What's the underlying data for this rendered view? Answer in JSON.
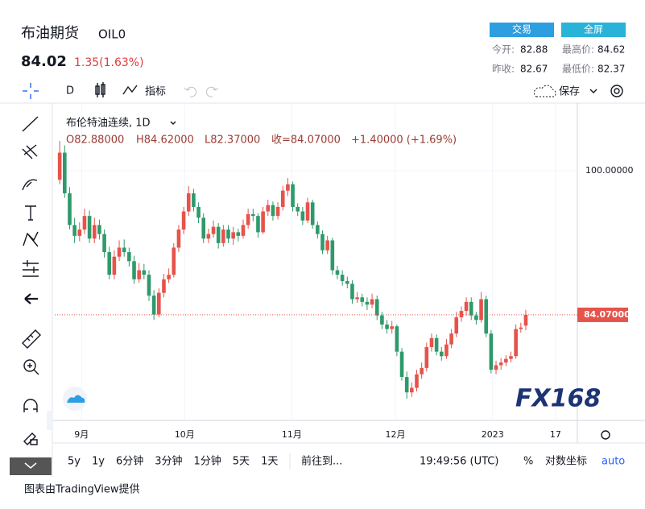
{
  "header": {
    "title": "布油期货",
    "symbol": "OIL0",
    "price": 84.02,
    "change": "1.35(1.63%)",
    "buttons": [
      "交易",
      "全屏"
    ],
    "stats": [
      {
        "label": "今开:",
        "value": 82.88
      },
      {
        "label": "最高价:",
        "value": 84.62
      },
      {
        "label": "昨收:",
        "value": 82.67
      },
      {
        "label": "最低价:",
        "value": 82.37
      }
    ]
  },
  "toolbar": {
    "interval": "D",
    "indicators": "指标",
    "save": "保存"
  },
  "legend": {
    "name": "布伦特油连续, 1D",
    "open": "O82.88000",
    "high": "H84.62000",
    "low": "L82.37000",
    "close": "收=84.07000",
    "change": "+1.40000 (+1.69%)"
  },
  "bottom_bar": {
    "ranges": [
      "5y",
      "1y",
      "6分钟",
      "3分钟",
      "1分钟",
      "5天",
      "1天"
    ],
    "goto": "前往到...",
    "time": "19:49:56 (UTC)",
    "percent": "%",
    "log": "对数坐标",
    "auto": "auto"
  },
  "footer": "图表由TradingView提供",
  "watermark": "FX168",
  "chart_data": {
    "type": "candlestick",
    "up_color": "#e5534b",
    "down_color": "#2e9a6b",
    "grid": true,
    "ylim": [
      72.4,
      107.3
    ],
    "yticks": [
      {
        "value": 100,
        "label": "100.00000"
      }
    ],
    "xlim": [
      -1,
      104.4
    ],
    "xticks": [
      {
        "value": 4.4,
        "label": "9月"
      },
      {
        "value": 25.2,
        "label": "10月"
      },
      {
        "value": 46.8,
        "label": "11月"
      },
      {
        "value": 67.7,
        "label": "12月"
      },
      {
        "value": 87.3,
        "label": "2023"
      },
      {
        "value": 100,
        "label": "17"
      }
    ],
    "last_price": {
      "value": 84.07,
      "label": "84.07000"
    },
    "open": [
      99.0,
      102.0,
      97.5,
      94.0,
      92.8,
      93.5,
      95.0,
      92.5,
      94.0,
      93.0,
      91.0,
      88.5,
      90.5,
      91.5,
      91.0,
      90.0,
      88.0,
      89.0,
      88.5,
      86.2,
      84.1,
      86.5,
      88.0,
      88.5,
      91.5,
      93.5,
      95.5,
      97.5,
      96.0,
      94.8,
      92.5,
      93.0,
      93.8,
      92.0,
      93.5,
      92.5,
      93.2,
      92.8,
      94.0,
      95.2,
      95.0,
      93.2,
      95.5,
      96.2,
      95.0,
      96.0,
      97.8,
      98.5,
      96.0,
      95.5,
      94.5,
      96.5,
      94.0,
      93.0,
      91.2,
      92.3,
      89.0,
      88.5,
      87.8,
      87.5,
      85.8,
      86.0,
      85.5,
      85.2,
      85.8,
      84.0,
      83.0,
      82.5,
      82.8,
      80.0,
      77.2,
      75.5,
      76.0,
      77.5,
      78.2,
      80.5,
      81.5,
      80.0,
      79.5,
      80.8,
      82.0,
      83.8,
      84.5,
      85.5,
      84.0,
      83.5,
      85.8,
      82.0,
      78.0,
      78.5,
      78.8,
      79.2,
      79.5,
      82.5,
      82.88
    ],
    "high": [
      103.3,
      102.8,
      98.2,
      94.8,
      94.3,
      95.8,
      95.6,
      94.8,
      94.6,
      93.5,
      91.6,
      91.2,
      92.3,
      92.4,
      91.5,
      90.6,
      89.8,
      89.7,
      89.0,
      86.8,
      87.0,
      88.6,
      89.2,
      92.0,
      94.0,
      96.0,
      98.3,
      98.0,
      96.5,
      95.3,
      93.6,
      94.5,
      94.2,
      94.0,
      94.0,
      93.8,
      93.6,
      94.6,
      95.8,
      95.8,
      95.3,
      96.0,
      96.8,
      96.6,
      96.5,
      98.3,
      99.2,
      98.8,
      96.4,
      96.0,
      97.0,
      96.8,
      94.4,
      93.4,
      92.8,
      92.6,
      89.5,
      89.0,
      88.3,
      87.9,
      86.6,
      86.4,
      86.0,
      86.4,
      86.2,
      84.4,
      83.5,
      83.4,
      83.0,
      80.4,
      77.8,
      76.6,
      78.0,
      78.8,
      81.0,
      82.0,
      81.9,
      80.5,
      81.4,
      82.5,
      84.4,
      85.0,
      86.0,
      86.0,
      84.4,
      86.6,
      86.2,
      82.4,
      79.0,
      79.3,
      79.6,
      80.0,
      83.0,
      83.2,
      84.62
    ],
    "low": [
      98.5,
      97.0,
      93.5,
      92.0,
      92.2,
      93.0,
      92.0,
      92.0,
      92.4,
      90.4,
      88.0,
      88.0,
      90.0,
      90.5,
      89.4,
      87.5,
      87.6,
      88.0,
      85.6,
      83.5,
      83.8,
      86.0,
      87.6,
      88.2,
      91.0,
      93.0,
      95.0,
      95.5,
      94.2,
      92.0,
      92.0,
      92.6,
      91.4,
      91.6,
      92.0,
      91.8,
      92.2,
      92.5,
      93.6,
      94.4,
      92.6,
      93.0,
      95.0,
      94.5,
      94.6,
      95.6,
      97.2,
      95.5,
      95.0,
      94.0,
      94.2,
      93.6,
      92.5,
      90.8,
      90.8,
      88.5,
      88.0,
      87.3,
      87.0,
      85.3,
      85.4,
      85.0,
      84.6,
      84.8,
      83.5,
      82.5,
      82.0,
      82.0,
      79.5,
      76.8,
      74.8,
      75.0,
      75.6,
      77.0,
      77.8,
      80.0,
      79.6,
      79.0,
      79.2,
      80.4,
      81.6,
      83.3,
      84.0,
      83.5,
      83.0,
      83.2,
      81.6,
      77.6,
      77.5,
      78.0,
      78.4,
      78.8,
      79.2,
      82.1,
      82.37
    ],
    "close": [
      102.0,
      97.5,
      94.0,
      92.8,
      93.5,
      95.0,
      92.5,
      94.0,
      93.0,
      91.0,
      88.5,
      90.5,
      91.5,
      91.0,
      90.0,
      88.0,
      89.0,
      88.5,
      86.2,
      84.1,
      86.5,
      88.0,
      88.5,
      91.5,
      93.5,
      95.5,
      97.5,
      96.0,
      94.8,
      92.5,
      93.0,
      93.8,
      92.0,
      93.5,
      92.5,
      93.2,
      92.8,
      94.0,
      95.2,
      95.0,
      93.2,
      95.5,
      96.2,
      95.0,
      96.0,
      97.8,
      98.5,
      96.0,
      95.5,
      94.5,
      96.5,
      94.0,
      93.0,
      91.2,
      92.3,
      89.0,
      88.5,
      87.8,
      87.5,
      85.8,
      86.0,
      85.5,
      85.2,
      85.8,
      84.0,
      83.0,
      82.5,
      82.8,
      80.0,
      77.2,
      75.5,
      76.0,
      77.5,
      78.2,
      80.5,
      81.5,
      80.0,
      79.5,
      80.8,
      82.0,
      83.8,
      84.5,
      85.5,
      84.0,
      83.5,
      85.8,
      82.0,
      78.0,
      78.5,
      78.8,
      79.2,
      79.5,
      82.5,
      82.67,
      84.07
    ]
  }
}
